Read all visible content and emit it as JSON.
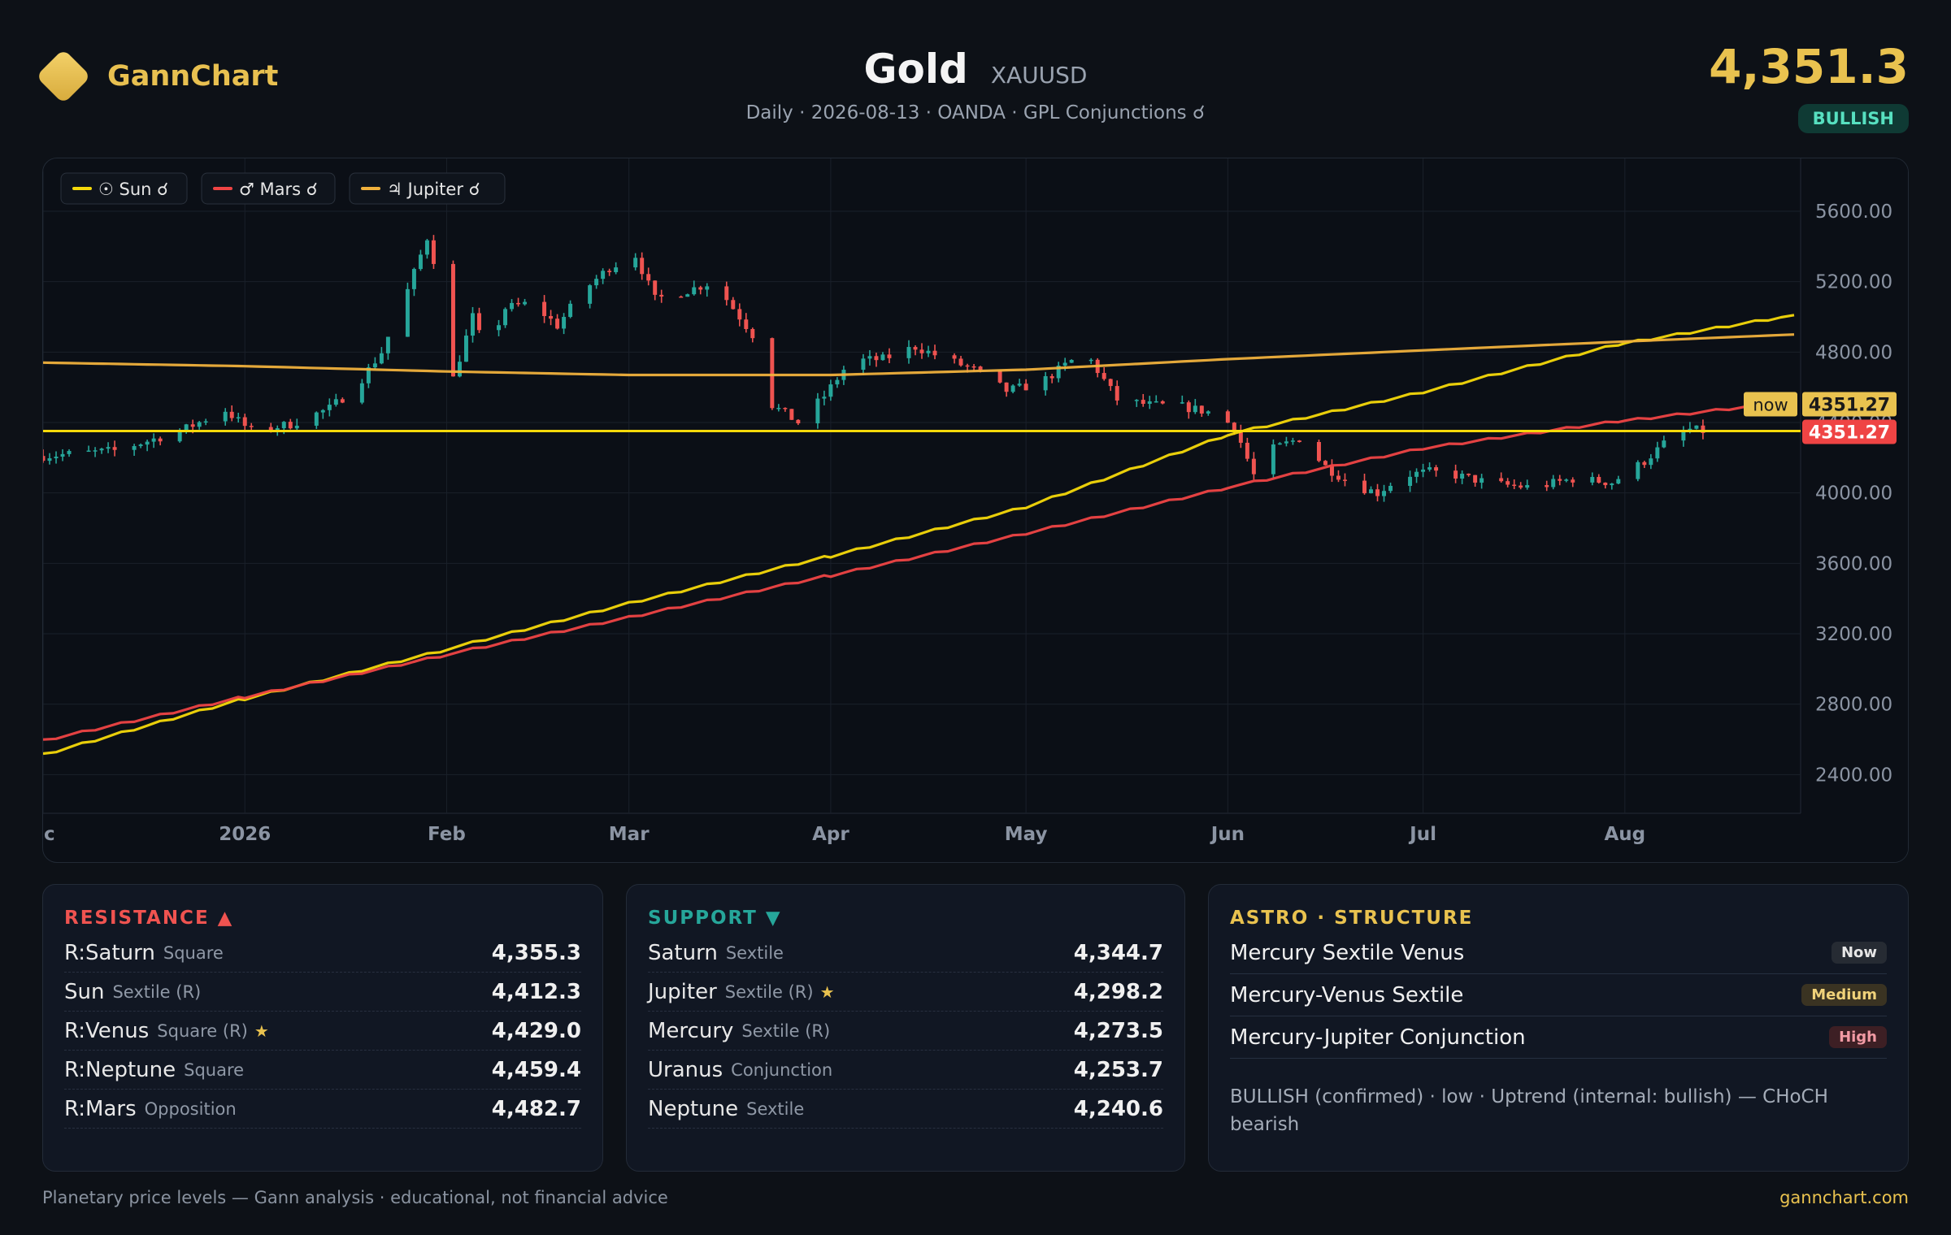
{
  "brand": {
    "name": "GannChart",
    "icon": "diamond-logo-icon"
  },
  "header": {
    "title": "Gold",
    "symbol": "XAUUSD",
    "subtitle": "Daily · 2026-08-13 · OANDA · GPL Conjunctions ☌",
    "price": "4,351.3",
    "trend": "BULLISH"
  },
  "colors": {
    "bull": "#26a69a",
    "bear": "#ef5350",
    "sun": "#f5d90a",
    "mars": "#ef4444",
    "jupiter": "#f0b13c",
    "accent": "#e9c24f"
  },
  "legend": [
    {
      "label": "☉ Sun ☌",
      "color": "#f5d90a"
    },
    {
      "label": "♂ Mars ☌",
      "color": "#ef4444"
    },
    {
      "label": "♃ Jupiter ☌",
      "color": "#f0b13c"
    }
  ],
  "chart_data": {
    "type": "line",
    "title": "",
    "xlabel": "",
    "ylabel": "",
    "y_ticks": [
      "5600.00",
      "5200.00",
      "4800.00",
      "4400.00",
      "4000.00",
      "3600.00",
      "3200.00",
      "2800.00",
      "2400.00"
    ],
    "y_tick_values": [
      5600,
      5200,
      4800,
      4400,
      4000,
      3600,
      3200,
      2800,
      2400
    ],
    "x_ticks": [
      "ec",
      "2026",
      "Feb",
      "Mar",
      "Apr",
      "May",
      "Jun",
      "Jul",
      "Aug"
    ],
    "x_tick_dates": [
      "2025-12-01",
      "2026-01-01",
      "2026-02-01",
      "2026-03-01",
      "2026-04-01",
      "2026-05-01",
      "2026-06-01",
      "2026-07-01",
      "2026-08-01"
    ],
    "x_range": [
      "2025-12-01",
      "2026-08-28"
    ],
    "ylim": [
      2180,
      5900
    ],
    "grid": true,
    "legend_position": "top-left",
    "current_price": "4351.27",
    "now_label": "now",
    "now_value": "4351.27",
    "price_anchors": [
      [
        "2025-12-01",
        4210
      ],
      [
        "2025-12-12",
        4240
      ],
      [
        "2025-12-22",
        4350
      ],
      [
        "2025-12-29",
        4470
      ],
      [
        "2026-01-02",
        4350
      ],
      [
        "2026-01-08",
        4390
      ],
      [
        "2026-01-14",
        4480
      ],
      [
        "2026-01-18",
        4600
      ],
      [
        "2026-01-22",
        4800
      ],
      [
        "2026-01-26",
        5150
      ],
      [
        "2026-01-29",
        5450
      ],
      [
        "2026-01-31",
        5200
      ],
      [
        "2026-02-02",
        4650
      ],
      [
        "2026-02-05",
        5000
      ],
      [
        "2026-02-07",
        4800
      ],
      [
        "2026-02-10",
        5050
      ],
      [
        "2026-02-14",
        5080
      ],
      [
        "2026-02-18",
        4950
      ],
      [
        "2026-02-22",
        5150
      ],
      [
        "2026-02-26",
        5280
      ],
      [
        "2026-03-02",
        5350
      ],
      [
        "2026-03-05",
        5100
      ],
      [
        "2026-03-10",
        5150
      ],
      [
        "2026-03-14",
        5200
      ],
      [
        "2026-03-18",
        5000
      ],
      [
        "2026-03-20",
        4900
      ],
      [
        "2026-03-23",
        4500
      ],
      [
        "2026-03-27",
        4400
      ],
      [
        "2026-03-31",
        4550
      ],
      [
        "2026-04-04",
        4750
      ],
      [
        "2026-04-09",
        4760
      ],
      [
        "2026-04-14",
        4830
      ],
      [
        "2026-04-18",
        4770
      ],
      [
        "2026-04-23",
        4700
      ],
      [
        "2026-04-28",
        4580
      ],
      [
        "2026-05-03",
        4620
      ],
      [
        "2026-05-08",
        4750
      ],
      [
        "2026-05-11",
        4750
      ],
      [
        "2026-05-15",
        4530
      ],
      [
        "2026-05-20",
        4500
      ],
      [
        "2026-05-25",
        4490
      ],
      [
        "2026-05-29",
        4460
      ],
      [
        "2026-06-02",
        4380
      ],
      [
        "2026-06-05",
        4100
      ],
      [
        "2026-06-08",
        4250
      ],
      [
        "2026-06-12",
        4310
      ],
      [
        "2026-06-16",
        4150
      ],
      [
        "2026-06-20",
        4050
      ],
      [
        "2026-06-24",
        4000
      ],
      [
        "2026-06-28",
        4100
      ],
      [
        "2026-07-02",
        4120
      ],
      [
        "2026-07-06",
        4100
      ],
      [
        "2026-07-12",
        4050
      ],
      [
        "2026-07-18",
        4030
      ],
      [
        "2026-07-24",
        4080
      ],
      [
        "2026-07-30",
        4060
      ],
      [
        "2026-08-04",
        4180
      ],
      [
        "2026-08-08",
        4310
      ],
      [
        "2026-08-11",
        4360
      ],
      [
        "2026-08-13",
        4351
      ]
    ],
    "series": [
      {
        "name": "☉ Sun ☌",
        "key": "sun",
        "points": [
          [
            "2025-12-01",
            2510
          ],
          [
            "2026-01-01",
            2830
          ],
          [
            "2026-02-01",
            3110
          ],
          [
            "2026-03-01",
            3370
          ],
          [
            "2026-04-01",
            3640
          ],
          [
            "2026-05-01",
            3920
          ],
          [
            "2026-06-01",
            4330
          ],
          [
            "2026-07-01",
            4570
          ],
          [
            "2026-08-01",
            4850
          ],
          [
            "2026-08-27",
            5010
          ]
        ]
      },
      {
        "name": "♂ Mars ☌",
        "key": "mars",
        "points": [
          [
            "2025-12-01",
            2590
          ],
          [
            "2026-01-01",
            2840
          ],
          [
            "2026-02-01",
            3080
          ],
          [
            "2026-03-01",
            3290
          ],
          [
            "2026-04-01",
            3530
          ],
          [
            "2026-05-01",
            3770
          ],
          [
            "2026-06-01",
            4030
          ],
          [
            "2026-07-01",
            4250
          ],
          [
            "2026-08-01",
            4410
          ],
          [
            "2026-08-27",
            4520
          ]
        ]
      },
      {
        "name": "♃ Jupiter ☌",
        "key": "jupiter",
        "points": [
          [
            "2025-12-01",
            4740
          ],
          [
            "2026-01-01",
            4720
          ],
          [
            "2026-02-01",
            4690
          ],
          [
            "2026-03-01",
            4670
          ],
          [
            "2026-04-01",
            4670
          ],
          [
            "2026-05-01",
            4700
          ],
          [
            "2026-06-01",
            4760
          ],
          [
            "2026-07-01",
            4810
          ],
          [
            "2026-08-01",
            4860
          ],
          [
            "2026-08-27",
            4900
          ]
        ]
      }
    ]
  },
  "resistance": {
    "title": "RESISTANCE",
    "icon": "triangle-up-icon",
    "items": [
      {
        "name": "R:Saturn",
        "aspect": "Square",
        "value": "4,355.3",
        "star": ""
      },
      {
        "name": "Sun",
        "aspect": "Sextile (R)",
        "value": "4,412.3",
        "star": ""
      },
      {
        "name": "R:Venus",
        "aspect": "Square (R)",
        "value": "4,429.0",
        "star": "★"
      },
      {
        "name": "R:Neptune",
        "aspect": "Square",
        "value": "4,459.4",
        "star": ""
      },
      {
        "name": "R:Mars",
        "aspect": "Opposition",
        "value": "4,482.7",
        "star": ""
      }
    ]
  },
  "support": {
    "title": "SUPPORT",
    "icon": "triangle-down-icon",
    "items": [
      {
        "name": "Saturn",
        "aspect": "Sextile",
        "value": "4,344.7",
        "star": ""
      },
      {
        "name": "Jupiter",
        "aspect": "Sextile (R)",
        "value": "4,298.2",
        "star": "★"
      },
      {
        "name": "Mercury",
        "aspect": "Sextile (R)",
        "value": "4,273.5",
        "star": ""
      },
      {
        "name": "Uranus",
        "aspect": "Conjunction",
        "value": "4,253.7",
        "star": ""
      },
      {
        "name": "Neptune",
        "aspect": "Sextile",
        "value": "4,240.6",
        "star": ""
      }
    ]
  },
  "astro": {
    "title": "ASTRO · STRUCTURE",
    "items": [
      {
        "name": "Mercury Sextile Venus",
        "badge": "Now",
        "bg": "#262b33",
        "fg": "#e6e6e6"
      },
      {
        "name": "Mercury-Venus Sextile",
        "badge": "Medium",
        "bg": "#3a3322",
        "fg": "#f0d27a"
      },
      {
        "name": "Mercury-Jupiter Conjunction",
        "badge": "High",
        "bg": "#3d1f24",
        "fg": "#f29aa4"
      }
    ],
    "structure": "BULLISH (confirmed) · low · Uptrend (internal: bullish) — CHoCH bearish"
  },
  "footer": {
    "left": "Planetary price levels — Gann analysis · educational, not financial advice",
    "right": "gannchart.com"
  }
}
